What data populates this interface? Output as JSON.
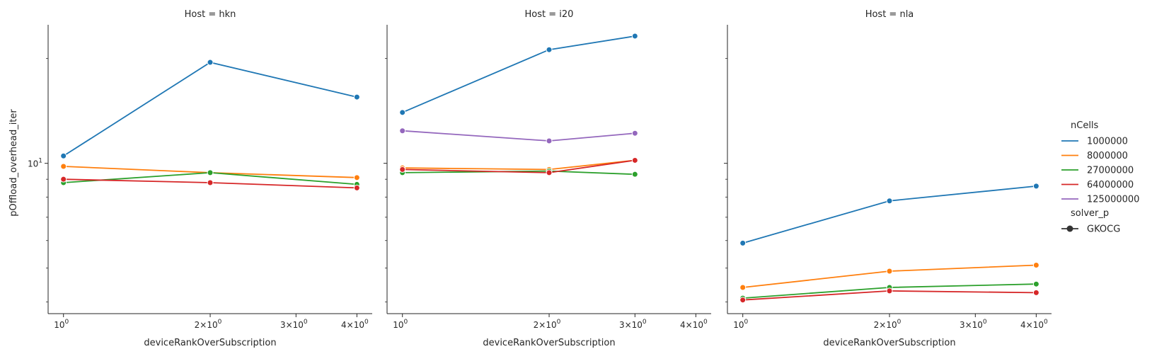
{
  "figure": {
    "ylabel": "pOffload_overhead_iter",
    "xlabel": "deviceRankOverSubscription",
    "x_ticks": [
      {
        "value": 1,
        "label": "10"
      },
      {
        "value": 2,
        "label": "2×10"
      },
      {
        "value": 3,
        "label": "3×10"
      },
      {
        "value": 4,
        "label": "4×10"
      }
    ],
    "y_ticks": [
      {
        "value": 10,
        "label": "10"
      }
    ],
    "legend": {
      "title": "nCells",
      "entries": [
        "1000000",
        "8000000",
        "27000000",
        "64000000",
        "125000000"
      ],
      "style_title": "solver_p",
      "style_entries": [
        "GKOCG"
      ]
    }
  },
  "chart_data": [
    {
      "type": "line",
      "title": "Host = hkn",
      "xlabel": "deviceRankOverSubscription",
      "ylabel": "pOffload_overhead_iter",
      "xscale": "log",
      "yscale": "log",
      "xlim": [
        0.93,
        4.3
      ],
      "ylim": [
        3.7,
        25
      ],
      "series": [
        {
          "name": "1000000",
          "color": "#1f77b4",
          "x": [
            1,
            2,
            4
          ],
          "y": [
            10.5,
            19.5,
            15.5
          ]
        },
        {
          "name": "8000000",
          "color": "#ff7f0e",
          "x": [
            1,
            2,
            4
          ],
          "y": [
            9.8,
            9.4,
            9.1
          ]
        },
        {
          "name": "27000000",
          "color": "#2ca02c",
          "x": [
            1,
            2,
            4
          ],
          "y": [
            8.8,
            9.4,
            8.7
          ]
        },
        {
          "name": "64000000",
          "color": "#d62728",
          "x": [
            1,
            2,
            4
          ],
          "y": [
            9.0,
            8.8,
            8.5
          ]
        }
      ]
    },
    {
      "type": "line",
      "title": "Host = i20",
      "xlabel": "deviceRankOverSubscription",
      "ylabel": "",
      "xscale": "log",
      "yscale": "log",
      "xlim": [
        0.93,
        4.3
      ],
      "ylim": [
        3.7,
        25
      ],
      "series": [
        {
          "name": "1000000",
          "color": "#1f77b4",
          "x": [
            1,
            2,
            3
          ],
          "y": [
            14.0,
            21.2,
            23.2
          ]
        },
        {
          "name": "8000000",
          "color": "#ff7f0e",
          "x": [
            1,
            2,
            3
          ],
          "y": [
            9.7,
            9.6,
            10.2
          ]
        },
        {
          "name": "27000000",
          "color": "#2ca02c",
          "x": [
            1,
            2,
            3
          ],
          "y": [
            9.4,
            9.5,
            9.3
          ]
        },
        {
          "name": "64000000",
          "color": "#d62728",
          "x": [
            1,
            2,
            3
          ],
          "y": [
            9.6,
            9.4,
            10.2
          ]
        },
        {
          "name": "125000000",
          "color": "#9467bd",
          "x": [
            1,
            2,
            3
          ],
          "y": [
            12.4,
            11.6,
            12.2
          ]
        }
      ]
    },
    {
      "type": "line",
      "title": "Host = nla",
      "xlabel": "deviceRankOverSubscription",
      "ylabel": "",
      "xscale": "log",
      "yscale": "log",
      "xlim": [
        0.93,
        4.3
      ],
      "ylim": [
        3.7,
        25
      ],
      "series": [
        {
          "name": "1000000",
          "color": "#1f77b4",
          "x": [
            1,
            2,
            4
          ],
          "y": [
            5.9,
            7.8,
            8.6
          ]
        },
        {
          "name": "8000000",
          "color": "#ff7f0e",
          "x": [
            1,
            2,
            4
          ],
          "y": [
            4.4,
            4.9,
            5.1
          ]
        },
        {
          "name": "27000000",
          "color": "#2ca02c",
          "x": [
            1,
            2,
            4
          ],
          "y": [
            4.1,
            4.4,
            4.5
          ]
        },
        {
          "name": "64000000",
          "color": "#d62728",
          "x": [
            1,
            2,
            4
          ],
          "y": [
            4.05,
            4.3,
            4.25
          ]
        }
      ]
    }
  ]
}
